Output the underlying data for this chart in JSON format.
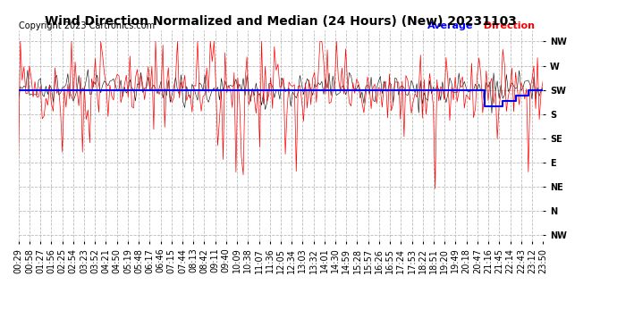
{
  "title": "Wind Direction Normalized and Median (24 Hours) (New) 20231103",
  "copyright": "Copyright 2023 Cartronics.com",
  "legend_label_blue": "Average",
  "legend_label_red": " Direction",
  "ytick_labels": [
    "NW",
    "W",
    "SW",
    "S",
    "SE",
    "E",
    "NE",
    "N",
    "NW"
  ],
  "ytick_values": [
    315,
    270,
    225,
    180,
    135,
    90,
    45,
    0,
    -45
  ],
  "ylim": [
    -56,
    336
  ],
  "bg_color": "#ffffff",
  "grid_color": "#bbbbbb",
  "red_color": "#ff0000",
  "blue_color": "#0000ff",
  "black_color": "#000000",
  "title_fontsize": 10,
  "copyright_fontsize": 7,
  "tick_fontsize": 7,
  "num_points": 288,
  "sw_value": 225,
  "seed": 42,
  "xtick_labels": [
    "00:29",
    "00:58",
    "01:27",
    "01:56",
    "02:25",
    "02:54",
    "03:23",
    "03:52",
    "04:21",
    "04:50",
    "05:19",
    "05:48",
    "06:17",
    "06:46",
    "07:15",
    "07:44",
    "08:13",
    "08:42",
    "09:11",
    "09:40",
    "10:09",
    "10:38",
    "11:07",
    "11:36",
    "12:05",
    "12:34",
    "13:03",
    "13:32",
    "14:01",
    "14:30",
    "14:59",
    "15:28",
    "15:57",
    "16:26",
    "16:55",
    "17:24",
    "17:53",
    "18:22",
    "18:51",
    "19:20",
    "19:49",
    "20:18",
    "20:47",
    "21:16",
    "21:45",
    "22:14",
    "22:43",
    "23:12",
    "23:50"
  ]
}
